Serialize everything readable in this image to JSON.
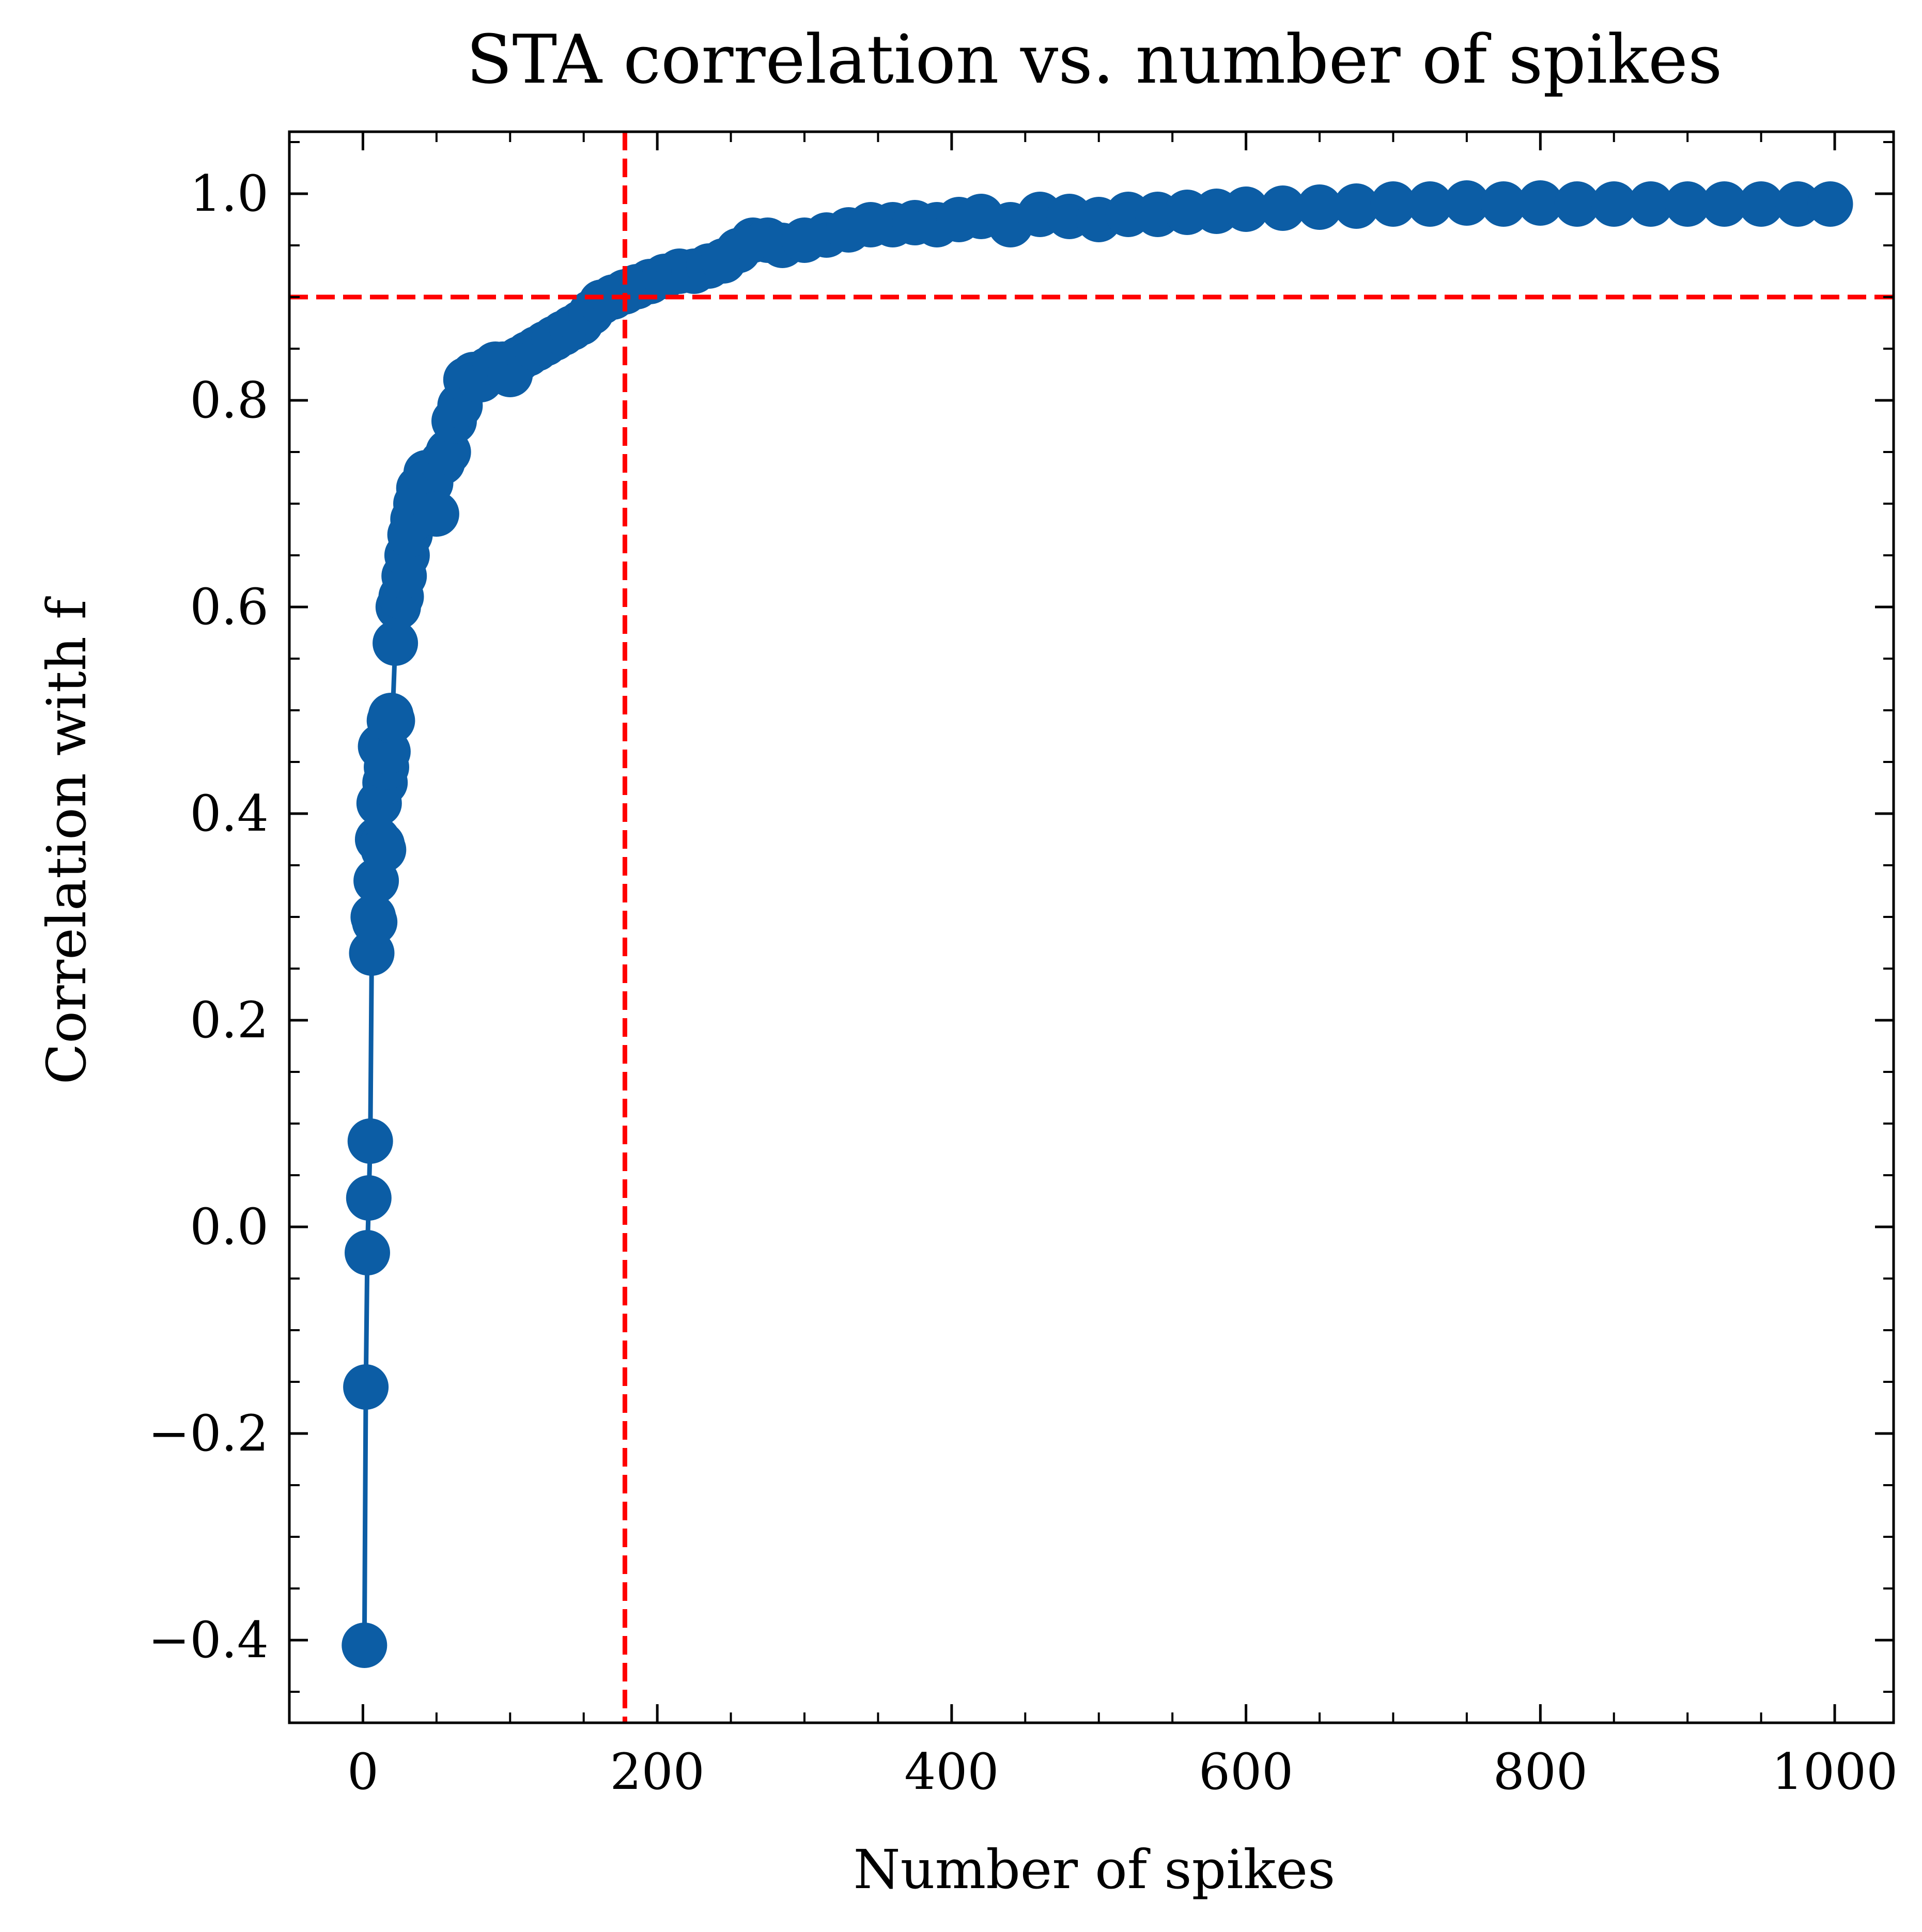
{
  "chart_data": {
    "type": "line",
    "title": "STA correlation vs. number of spikes",
    "xlabel": "Number of spikes",
    "ylabel": "Correlation with f",
    "xlim": [
      -50,
      1040
    ],
    "ylim": [
      -0.48,
      1.06
    ],
    "xticks": [
      0,
      200,
      400,
      600,
      800,
      1000
    ],
    "xtick_labels": [
      "0",
      "200",
      "400",
      "600",
      "800",
      "1000"
    ],
    "yticks": [
      -0.4,
      -0.2,
      0.0,
      0.2,
      0.4,
      0.6,
      0.8,
      1.0
    ],
    "ytick_labels": [
      "−0.4",
      "−0.2",
      "0.0",
      "0.2",
      "0.4",
      "0.6",
      "0.8",
      "1.0"
    ],
    "grid": false,
    "series": [
      {
        "color": "#0C5DA5",
        "marker": "circle",
        "x": [
          1,
          2,
          3,
          4,
          5,
          6,
          7,
          8,
          9,
          10,
          11,
          12,
          13,
          14,
          15,
          16,
          17,
          18,
          19,
          20,
          22,
          24,
          26,
          28,
          30,
          32,
          34,
          36,
          38,
          40,
          43,
          46,
          50,
          54,
          58,
          62,
          66,
          70,
          75,
          80,
          85,
          90,
          95,
          100,
          106,
          112,
          118,
          124,
          130,
          136,
          142,
          148,
          155,
          162,
          170,
          178,
          186,
          195,
          205,
          215,
          225,
          235,
          245,
          255,
          265,
          275,
          285,
          300,
          315,
          330,
          345,
          360,
          375,
          390,
          405,
          420,
          440,
          460,
          480,
          500,
          520,
          540,
          560,
          580,
          600,
          625,
          650,
          675,
          700,
          725,
          750,
          775,
          800,
          825,
          850,
          875,
          900,
          925,
          950,
          975,
          997
        ],
        "y": [
          -0.405,
          -0.155,
          -0.025,
          0.028,
          0.083,
          0.265,
          0.3,
          0.295,
          0.335,
          0.375,
          0.41,
          0.465,
          0.37,
          0.365,
          0.43,
          0.445,
          0.46,
          0.49,
          0.495,
          0.49,
          0.565,
          0.6,
          0.61,
          0.63,
          0.65,
          0.67,
          0.685,
          0.7,
          0.715,
          0.71,
          0.73,
          0.72,
          0.69,
          0.74,
          0.75,
          0.78,
          0.795,
          0.82,
          0.825,
          0.82,
          0.83,
          0.835,
          0.835,
          0.825,
          0.84,
          0.845,
          0.85,
          0.855,
          0.86,
          0.865,
          0.87,
          0.875,
          0.885,
          0.895,
          0.9,
          0.905,
          0.91,
          0.915,
          0.92,
          0.925,
          0.925,
          0.93,
          0.935,
          0.945,
          0.955,
          0.955,
          0.95,
          0.955,
          0.96,
          0.965,
          0.97,
          0.97,
          0.972,
          0.97,
          0.975,
          0.978,
          0.97,
          0.98,
          0.978,
          0.975,
          0.98,
          0.98,
          0.982,
          0.983,
          0.985,
          0.986,
          0.987,
          0.988,
          0.99,
          0.99,
          0.991,
          0.99,
          0.991,
          0.99,
          0.99,
          0.99,
          0.99,
          0.99,
          0.99,
          0.99,
          0.99
        ]
      }
    ],
    "reference_lines": [
      {
        "orientation": "horizontal",
        "value": 0.9,
        "color": "#FF0000",
        "style": "dashed"
      },
      {
        "orientation": "vertical",
        "value": 178,
        "color": "#FF0000",
        "style": "dashed"
      }
    ]
  }
}
